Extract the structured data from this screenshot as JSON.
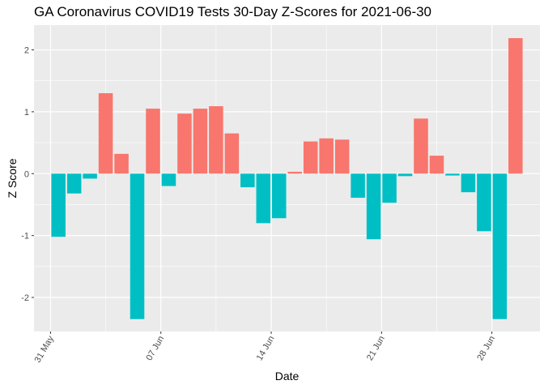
{
  "chart_data": {
    "type": "bar",
    "title": "GA Coronavirus COVID19 Tests 30-Day Z-Scores for 2021-06-30",
    "xlabel": "Date",
    "ylabel": "Z Score",
    "ylim": [
      -2.55,
      2.4
    ],
    "y_ticks": [
      -2,
      -1,
      0,
      1,
      2
    ],
    "x_ticks": [
      {
        "label": "31 May",
        "index": -0.5
      },
      {
        "label": "07 Jun",
        "index": 6.5
      },
      {
        "label": "14 Jun",
        "index": 13.5
      },
      {
        "label": "21 Jun",
        "index": 20.5
      },
      {
        "label": "28 Jun",
        "index": 27.5
      }
    ],
    "categories": [
      "2021-06-01",
      "2021-06-02",
      "2021-06-03",
      "2021-06-04",
      "2021-06-05",
      "2021-06-06",
      "2021-06-07",
      "2021-06-08",
      "2021-06-09",
      "2021-06-10",
      "2021-06-11",
      "2021-06-12",
      "2021-06-13",
      "2021-06-14",
      "2021-06-15",
      "2021-06-16",
      "2021-06-17",
      "2021-06-18",
      "2021-06-19",
      "2021-06-20",
      "2021-06-21",
      "2021-06-22",
      "2021-06-23",
      "2021-06-24",
      "2021-06-25",
      "2021-06-26",
      "2021-06-27",
      "2021-06-28",
      "2021-06-29",
      "2021-06-30"
    ],
    "values": [
      -1.02,
      -0.32,
      -0.08,
      1.3,
      0.32,
      -2.35,
      1.05,
      -0.2,
      0.97,
      1.05,
      1.09,
      0.65,
      -0.22,
      -0.8,
      -0.72,
      0.03,
      0.52,
      0.57,
      0.55,
      -0.39,
      -1.06,
      -0.47,
      -0.04,
      0.89,
      0.29,
      -0.03,
      -0.3,
      -0.93,
      -2.35,
      2.19
    ],
    "colors": {
      "positive": "#F8766D",
      "negative": "#00BFC4"
    },
    "panel_background": "#EBEBEB",
    "grid_major": "#FFFFFF",
    "grid": true,
    "legend": "none"
  }
}
